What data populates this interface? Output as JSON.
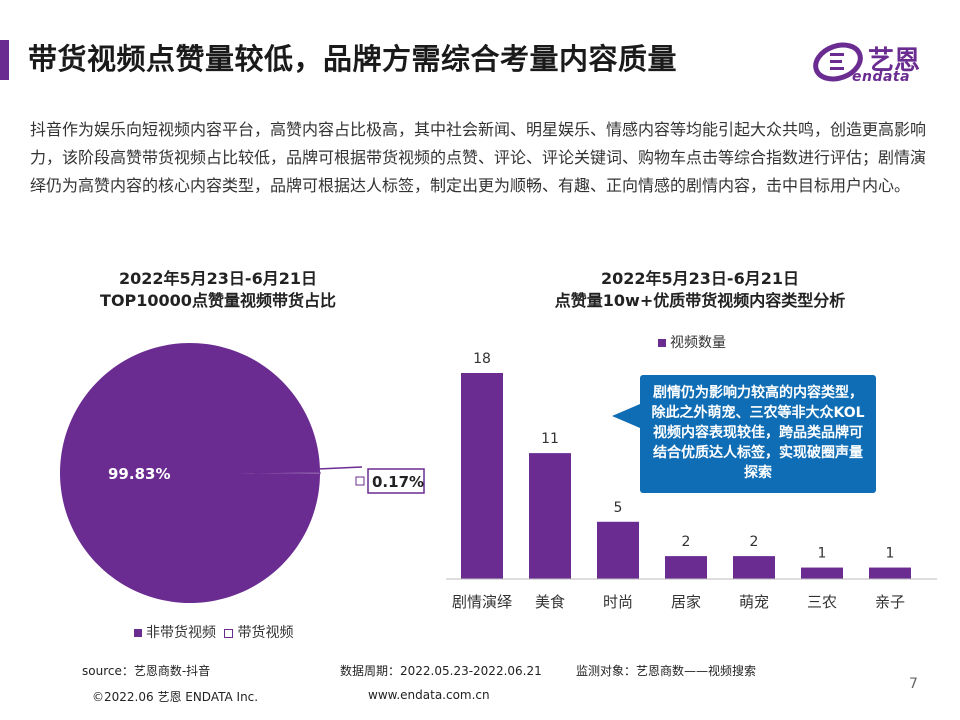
{
  "header": {
    "title": "带货视频点赞量较低，品牌方需综合考量内容质量",
    "logo_cn": "艺恩",
    "logo_en": "endata"
  },
  "intro": "抖音作为娱乐向短视频内容平台，高赞内容占比极高，其中社会新闻、明星娱乐、情感内容等均能引起大众共鸣，创造更高影响力，该阶段高赞带货视频占比较低，品牌可根据带货视频的点赞、评论、评论关键词、购物车点击等综合指数进行评估；剧情演绎仍为高赞内容的核心内容类型，品牌可根据达人标签，制定出更为顺畅、有趣、正向情感的剧情内容，击中目标用户内心。",
  "colors": {
    "accent": "#6a2c91",
    "callout": "#0f6db5"
  },
  "chart_data": [
    {
      "type": "pie",
      "title_line1": "2022年5月23日-6月21日",
      "title_line2": "TOP10000点赞量视频带货占比",
      "slices": [
        {
          "name": "非带货视频",
          "value": 99.83,
          "label": "99.83%"
        },
        {
          "name": "带货视频",
          "value": 0.17,
          "label": "0.17%"
        }
      ],
      "legend": "bottom"
    },
    {
      "type": "bar",
      "title_line1": "2022年5月23日-6月21日",
      "title_line2": "点赞量10w+优质带货视频内容类型分析",
      "categories": [
        "剧情演绎",
        "美食",
        "时尚",
        "居家",
        "萌宠",
        "三农",
        "亲子"
      ],
      "series": [
        {
          "name": "视频数量",
          "values": [
            18,
            11,
            5,
            2,
            2,
            1,
            1
          ]
        }
      ],
      "ylim": [
        0,
        18
      ],
      "grid": false,
      "legend": "top-right",
      "annotation": "剧情仍为影响力较高的内容类型，除此之外萌宠、三农等非大众KOL视频内容表现较佳，跨品类品牌可结合优质达人标签，实现破圈声量探索"
    }
  ],
  "footer": {
    "source": "source：艺恩商数-抖音",
    "period": "数据周期：2022.05.23-2022.06.21",
    "target": "监测对象：艺恩商数——视频搜索",
    "copyright": "©2022.06 艺恩 ENDATA Inc.",
    "website": "www.endata.com.cn",
    "page_number": "7"
  }
}
